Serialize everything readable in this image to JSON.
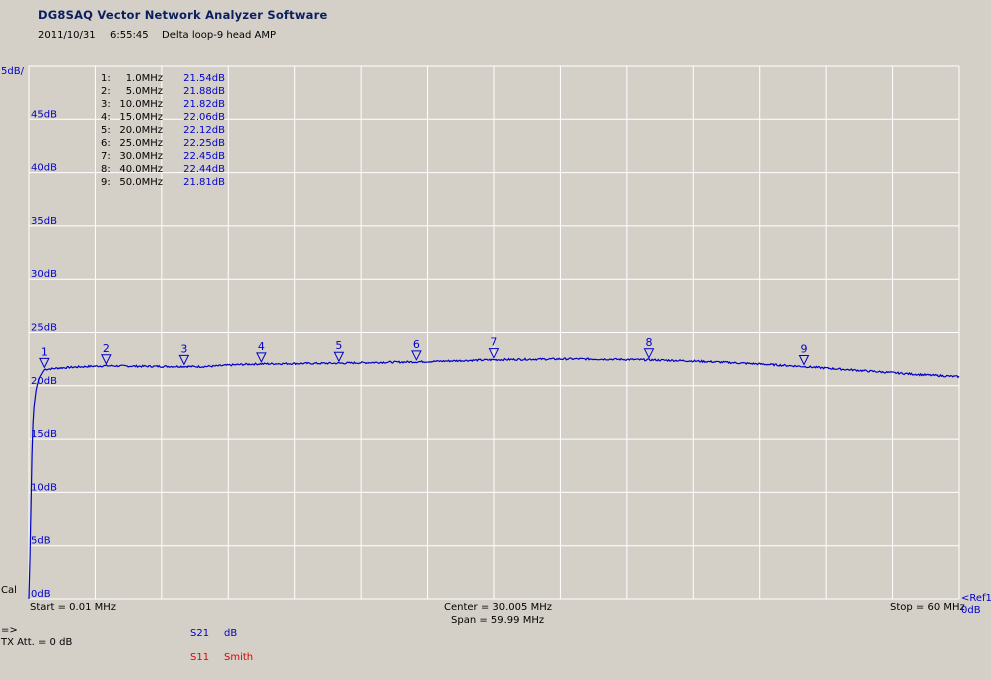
{
  "header": {
    "app_title": "DG8SAQ Vector Network Analyzer Software",
    "date": "2011/10/31",
    "time": "6:55:45",
    "description": "Delta loop-9 head AMP"
  },
  "chart_data": {
    "type": "line",
    "title": "",
    "xlabel": "",
    "ylabel": "",
    "scale_label": "5dB/",
    "xlim": [
      0.01,
      60
    ],
    "ylim": [
      0,
      50
    ],
    "y_ticks": [
      {
        "value": 0,
        "label": "0dB"
      },
      {
        "value": 5,
        "label": "5dB"
      },
      {
        "value": 10,
        "label": "10dB"
      },
      {
        "value": 15,
        "label": "15dB"
      },
      {
        "value": 20,
        "label": "20dB"
      },
      {
        "value": 25,
        "label": "25dB"
      },
      {
        "value": 30,
        "label": "30dB"
      },
      {
        "value": 35,
        "label": "35dB"
      },
      {
        "value": 40,
        "label": "40dB"
      },
      {
        "value": 45,
        "label": "45dB"
      }
    ],
    "grid": true,
    "series": [
      {
        "name": "S21",
        "color": "#0000c8",
        "points": [
          [
            0.01,
            0.0
          ],
          [
            0.1,
            5.0
          ],
          [
            0.2,
            13.0
          ],
          [
            0.3,
            17.5
          ],
          [
            0.5,
            19.8
          ],
          [
            0.7,
            20.8
          ],
          [
            1.0,
            21.54
          ],
          [
            2.0,
            21.68
          ],
          [
            3.0,
            21.76
          ],
          [
            4.0,
            21.83
          ],
          [
            5.0,
            21.88
          ],
          [
            6.0,
            21.86
          ],
          [
            7.0,
            21.84
          ],
          [
            8.0,
            21.83
          ],
          [
            9.0,
            21.82
          ],
          [
            10.0,
            21.82
          ],
          [
            11.0,
            21.8
          ],
          [
            12.0,
            21.85
          ],
          [
            13.0,
            21.95
          ],
          [
            14.0,
            22.02
          ],
          [
            15.0,
            22.06
          ],
          [
            17.5,
            22.1
          ],
          [
            20.0,
            22.12
          ],
          [
            22.5,
            22.2
          ],
          [
            25.0,
            22.25
          ],
          [
            27.5,
            22.35
          ],
          [
            30.0,
            22.45
          ],
          [
            32.5,
            22.5
          ],
          [
            35.0,
            22.53
          ],
          [
            37.5,
            22.5
          ],
          [
            40.0,
            22.44
          ],
          [
            42.5,
            22.35
          ],
          [
            45.0,
            22.2
          ],
          [
            47.5,
            22.02
          ],
          [
            50.0,
            21.81
          ],
          [
            52.5,
            21.55
          ],
          [
            55.0,
            21.3
          ],
          [
            57.5,
            21.05
          ],
          [
            60.0,
            20.85
          ]
        ]
      }
    ],
    "markers": [
      {
        "id": "1",
        "freq": 1.0,
        "freq_label": "1.0MHz",
        "value": 21.54,
        "value_label": "21.54dB"
      },
      {
        "id": "2",
        "freq": 5.0,
        "freq_label": "5.0MHz",
        "value": 21.88,
        "value_label": "21.88dB"
      },
      {
        "id": "3",
        "freq": 10.0,
        "freq_label": "10.0MHz",
        "value": 21.82,
        "value_label": "21.82dB"
      },
      {
        "id": "4",
        "freq": 15.0,
        "freq_label": "15.0MHz",
        "value": 22.06,
        "value_label": "22.06dB"
      },
      {
        "id": "5",
        "freq": 20.0,
        "freq_label": "20.0MHz",
        "value": 22.12,
        "value_label": "22.12dB"
      },
      {
        "id": "6",
        "freq": 25.0,
        "freq_label": "25.0MHz",
        "value": 22.25,
        "value_label": "22.25dB"
      },
      {
        "id": "7",
        "freq": 30.0,
        "freq_label": "30.0MHz",
        "value": 22.45,
        "value_label": "22.45dB"
      },
      {
        "id": "8",
        "freq": 40.0,
        "freq_label": "40.0MHz",
        "value": 22.44,
        "value_label": "22.44dB"
      },
      {
        "id": "9",
        "freq": 50.0,
        "freq_label": "50.0MHz",
        "value": 21.81,
        "value_label": "21.81dB"
      }
    ]
  },
  "footer": {
    "cal_label": "Cal",
    "start_label": "Start = 0.01 MHz",
    "center_label": "Center = 30.005 MHz",
    "span_label": "Span = 59.99 MHz",
    "stop_label": "Stop = 60 MHz",
    "ref_label": "<Ref1",
    "ref_value": "0dB",
    "arrow_label": "=>",
    "txatt_label": "TX Att.  = 0 dB",
    "trace1_param": "S21",
    "trace1_format": "dB",
    "trace2_param": "S11",
    "trace2_format": "Smith"
  },
  "colors": {
    "background": "#d4d0c8",
    "trace": "#0000c8",
    "grid": "#ffffff",
    "s11": "#e00000"
  }
}
